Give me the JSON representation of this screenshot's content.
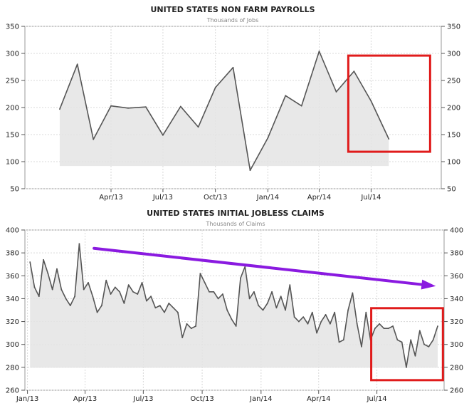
{
  "chart_data": [
    {
      "type": "area",
      "title": "UNITED STATES NON FARM PAYROLLS",
      "subtitle": "Thousands of Jobs",
      "xlabel": "",
      "ylabel": "",
      "ylim": [
        50,
        350
      ],
      "yticks": [
        "50",
        "100",
        "150",
        "200",
        "250",
        "300",
        "350"
      ],
      "xticks": [
        "Apr/13",
        "Jul/13",
        "Oct/13",
        "Jan/14",
        "Apr/14",
        "Jul/14"
      ],
      "x": [
        "2013-01",
        "2013-02",
        "2013-03",
        "2013-04",
        "2013-05",
        "2013-06",
        "2013-07",
        "2013-08",
        "2013-09",
        "2013-10",
        "2013-11",
        "2013-12",
        "2014-01",
        "2014-02",
        "2014-03",
        "2014-04",
        "2014-05",
        "2014-06",
        "2014-07",
        "2014-08"
      ],
      "values": [
        197,
        280,
        141,
        203,
        199,
        201,
        149,
        202,
        164,
        237,
        274,
        84,
        144,
        222,
        203,
        304,
        229,
        267,
        212,
        142
      ],
      "grid": true,
      "line_color": "#555555",
      "fill_color": "#e4e4e4",
      "highlight_box": {
        "from": "2014-06",
        "to": "2014-08",
        "color": "#e01b1b"
      }
    },
    {
      "type": "area",
      "title": "UNITED STATES INITIAL JOBLESS CLAIMS",
      "subtitle": "Thousands of Claims",
      "xlabel": "",
      "ylabel": "",
      "ylim": [
        260,
        400
      ],
      "yticks": [
        "260",
        "280",
        "300",
        "320",
        "340",
        "360",
        "380",
        "400"
      ],
      "xticks": [
        "Jan/13",
        "Apr/13",
        "Jul/13",
        "Oct/13",
        "Jan/14",
        "Apr/14",
        "Jul/14"
      ],
      "x_start": "2013-01-05",
      "x_step_days": 7,
      "values": [
        372,
        350,
        342,
        374,
        362,
        348,
        366,
        348,
        340,
        334,
        342,
        388,
        348,
        354,
        342,
        328,
        334,
        356,
        344,
        350,
        346,
        336,
        352,
        346,
        344,
        354,
        338,
        342,
        332,
        334,
        328,
        336,
        332,
        328,
        306,
        318,
        314,
        316,
        362,
        354,
        346,
        346,
        340,
        344,
        330,
        322,
        316,
        358,
        368,
        340,
        346,
        334,
        330,
        336,
        346,
        332,
        342,
        330,
        352,
        324,
        320,
        324,
        318,
        328,
        310,
        320,
        326,
        318,
        328,
        302,
        304,
        330,
        345,
        318,
        298,
        328,
        304,
        314,
        318,
        314,
        314,
        316,
        304,
        302,
        280,
        304,
        290,
        312,
        300,
        298,
        304,
        316
      ],
      "grid": true,
      "line_color": "#555555",
      "fill_color": "#e4e4e4",
      "trend_arrow": {
        "from": [
          "2013-04-15",
          384
        ],
        "to": [
          "2014-10-01",
          351
        ],
        "color": "#8a1ae0"
      },
      "highlight_box": {
        "from": "2014-07-01",
        "to": "2014-10-01",
        "color": "#e01b1b"
      }
    }
  ]
}
